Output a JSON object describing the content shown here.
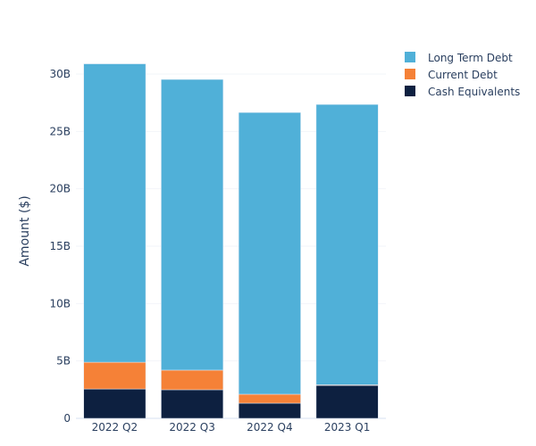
{
  "chart_data": {
    "type": "bar",
    "stacked": true,
    "title": "",
    "xlabel": "",
    "ylabel": "Amount ($)",
    "ylim": [
      0,
      31.4
    ],
    "yticks": [
      {
        "v": 0,
        "label": "0"
      },
      {
        "v": 5,
        "label": "5B"
      },
      {
        "v": 10,
        "label": "10B"
      },
      {
        "v": 15,
        "label": "15B"
      },
      {
        "v": 20,
        "label": "20B"
      },
      {
        "v": 25,
        "label": "25B"
      },
      {
        "v": 30,
        "label": "30B"
      }
    ],
    "categories": [
      "2022 Q2",
      "2022 Q3",
      "2022 Q4",
      "2023 Q1"
    ],
    "unit": "billions USD",
    "grid": true,
    "legend_position": "top-right",
    "series": [
      {
        "name": "Cash Equivalents",
        "color": "#0d2040",
        "values": [
          2.56,
          2.49,
          1.32,
          2.87
        ]
      },
      {
        "name": "Current Debt",
        "color": "#f58137",
        "values": [
          2.33,
          1.71,
          0.78,
          0.05
        ]
      },
      {
        "name": "Long Term Debt",
        "color": "#50b0d8",
        "values": [
          26.0,
          25.33,
          24.55,
          24.43
        ]
      }
    ]
  }
}
